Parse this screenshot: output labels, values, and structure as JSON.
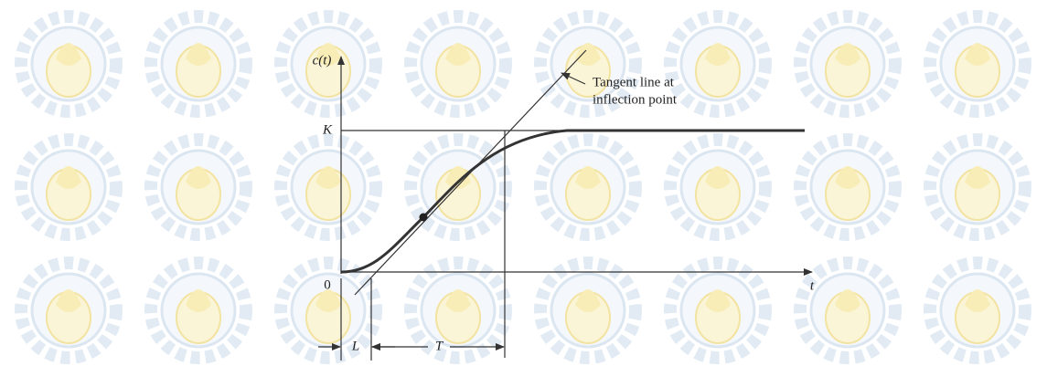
{
  "diagram": {
    "y_axis_label": "c(t)",
    "x_axis_label": "t",
    "origin_label": "0",
    "level_label": "K",
    "delay_label": "L",
    "time_constant_label": "T",
    "annotation": [
      "Tangent line at",
      "inflection point"
    ]
  }
}
